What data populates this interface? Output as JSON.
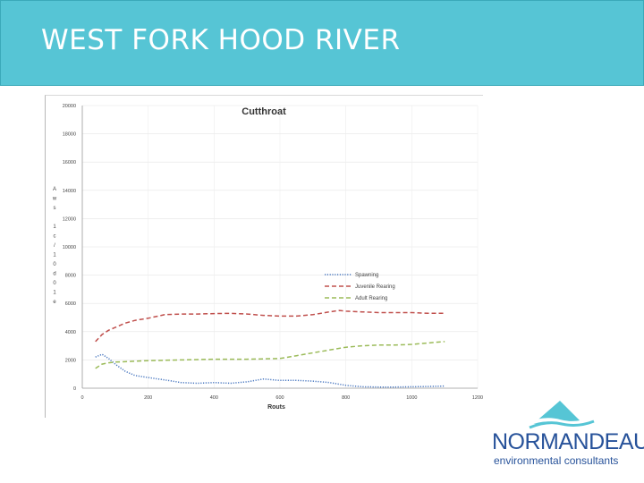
{
  "header": {
    "title": "WEST FORK HOOD RIVER"
  },
  "chart_data": {
    "type": "line",
    "title": "Cutthroat",
    "ylabel_chars": [
      "A",
      "w",
      "s",
      "",
      "1",
      "c",
      "/",
      "1",
      "0",
      "d",
      "0",
      "1",
      "e"
    ],
    "xlabel": "Routs",
    "xlim": [
      0,
      1200
    ],
    "ylim": [
      0,
      20000
    ],
    "x_ticks": [
      "0",
      "200",
      "400",
      "600",
      "800",
      "1000",
      "1200"
    ],
    "y_ticks": [
      "0",
      "2000",
      "4000",
      "6000",
      "8000",
      "10000",
      "12000",
      "14000",
      "16000",
      "18000",
      "20000"
    ],
    "grid": true,
    "legend_position": "right",
    "series": [
      {
        "name": "Spawning",
        "color": "#4a78c0",
        "dash": "dotted",
        "x": [
          40,
          60,
          80,
          100,
          130,
          160,
          200,
          260,
          300,
          350,
          400,
          450,
          500,
          550,
          600,
          650,
          700,
          750,
          800,
          850,
          900,
          950,
          1000,
          1050,
          1100
        ],
        "y": [
          2200,
          2400,
          2100,
          1700,
          1200,
          900,
          750,
          550,
          400,
          350,
          400,
          350,
          450,
          650,
          550,
          550,
          500,
          400,
          200,
          100,
          80,
          80,
          100,
          120,
          150
        ]
      },
      {
        "name": "Juvenile Rearing",
        "color": "#c0504d",
        "dash": "dashed",
        "x": [
          40,
          60,
          80,
          100,
          130,
          160,
          200,
          250,
          300,
          350,
          400,
          450,
          500,
          550,
          600,
          650,
          700,
          750,
          780,
          800,
          850,
          900,
          950,
          1000,
          1050,
          1100
        ],
        "y": [
          3300,
          3800,
          4100,
          4300,
          4600,
          4800,
          4950,
          5200,
          5250,
          5250,
          5280,
          5300,
          5250,
          5150,
          5100,
          5100,
          5200,
          5400,
          5500,
          5450,
          5400,
          5350,
          5350,
          5350,
          5300,
          5300
        ]
      },
      {
        "name": "Adult Rearing",
        "color": "#9bbb59",
        "dash": "dashed",
        "x": [
          40,
          60,
          80,
          100,
          150,
          200,
          300,
          400,
          500,
          600,
          650,
          700,
          750,
          800,
          850,
          900,
          950,
          1000,
          1050,
          1100
        ],
        "y": [
          1400,
          1700,
          1800,
          1850,
          1900,
          1950,
          2000,
          2050,
          2050,
          2100,
          2300,
          2500,
          2700,
          2900,
          3000,
          3050,
          3050,
          3100,
          3200,
          3300
        ]
      }
    ]
  },
  "logo": {
    "name": "NORMANDEAU",
    "subtitle": "environmental consultants",
    "color": "#27529a",
    "icon": "mountain-wave-icon"
  }
}
